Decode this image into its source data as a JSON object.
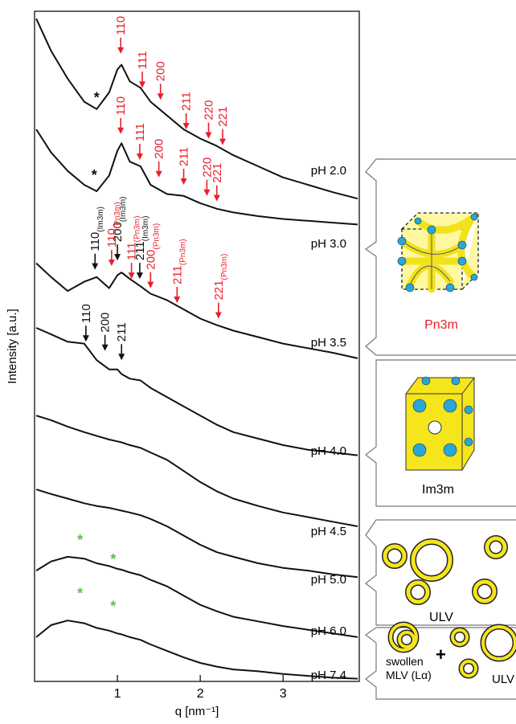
{
  "chart_data": {
    "type": "line",
    "y_label": "Intensity [a.u.]",
    "x_label": "q [nm⁻¹]",
    "xlim": [
      0,
      3.9
    ],
    "xticks": [
      1,
      2,
      3
    ],
    "ylim": [
      0,
      726
    ],
    "x": [
      0.02,
      0.2,
      0.4,
      0.6,
      0.75,
      0.9,
      1.0,
      1.05,
      1.15,
      1.28,
      1.4,
      1.6,
      1.8,
      2.0,
      2.2,
      2.4,
      2.7,
      3.0,
      3.3,
      3.6,
      3.9
    ],
    "series": [
      {
        "name": "pH 2.0",
        "color": "#111111",
        "values": [
          718,
          683,
          653,
          628,
          620,
          638,
          663,
          668,
          650,
          643,
          628,
          613,
          598,
          588,
          580,
          570,
          558,
          546,
          538,
          530,
          523
        ]
      },
      {
        "name": "pH 3.0",
        "color": "#111111",
        "values": [
          598,
          573,
          553,
          538,
          531,
          548,
          575,
          583,
          563,
          558,
          538,
          528,
          526,
          518,
          512,
          508,
          504,
          501,
          499,
          497,
          495
        ]
      },
      {
        "name": "pH 3.5",
        "color": "#111111",
        "values": [
          453,
          438,
          423,
          433,
          438,
          426,
          440,
          443,
          436,
          428,
          420,
          413,
          403,
          393,
          386,
          380,
          373,
          366,
          361,
          356,
          350
        ]
      },
      {
        "name": "pH 4.0",
        "color": "#111111",
        "values": [
          383,
          376,
          368,
          366,
          348,
          338,
          338,
          333,
          328,
          326,
          318,
          308,
          298,
          288,
          278,
          270,
          263,
          256,
          251,
          248,
          245
        ]
      },
      {
        "name": "pH 4.5",
        "color": "#111111",
        "values": [
          288,
          283,
          276,
          270,
          266,
          262,
          260,
          259,
          256,
          253,
          248,
          240,
          228,
          216,
          206,
          198,
          190,
          183,
          178,
          173,
          168
        ]
      },
      {
        "name": "pH 5.0",
        "color": "#111111",
        "values": [
          208,
          203,
          198,
          193,
          190,
          188,
          186,
          185,
          183,
          180,
          176,
          168,
          158,
          148,
          140,
          135,
          128,
          123,
          120,
          116,
          113
        ]
      },
      {
        "name": "pH 6.0",
        "color": "#111111",
        "values": [
          120,
          130,
          135,
          133,
          128,
          125,
          122,
          121,
          118,
          115,
          110,
          103,
          93,
          83,
          76,
          70,
          65,
          60,
          56,
          52,
          48
        ]
      },
      {
        "name": "pH 7.4",
        "color": "#111111",
        "values": [
          48,
          61,
          66,
          63,
          58,
          55,
          52,
          51,
          48,
          45,
          40,
          33,
          26,
          20,
          16,
          13,
          11,
          8,
          6,
          4,
          3
        ]
      }
    ],
    "peak_labels": [
      {
        "text": "110",
        "x": 1.04,
        "y": 680,
        "color": "#e8202a"
      },
      {
        "text": "111",
        "x": 1.3,
        "y": 643,
        "color": "#e8202a"
      },
      {
        "text": "200",
        "x": 1.52,
        "y": 630,
        "color": "#e8202a"
      },
      {
        "text": "211",
        "x": 1.83,
        "y": 598,
        "color": "#e8202a"
      },
      {
        "text": "220",
        "x": 2.1,
        "y": 588,
        "color": "#e8202a"
      },
      {
        "text": "221",
        "x": 2.27,
        "y": 581,
        "color": "#e8202a"
      },
      {
        "text": "110",
        "x": 1.04,
        "y": 593,
        "color": "#e8202a"
      },
      {
        "text": "111",
        "x": 1.27,
        "y": 565,
        "color": "#e8202a"
      },
      {
        "text": "200",
        "x": 1.5,
        "y": 546,
        "color": "#e8202a"
      },
      {
        "text": "211",
        "x": 1.8,
        "y": 538,
        "color": "#e8202a"
      },
      {
        "text": "220",
        "x": 2.08,
        "y": 526,
        "color": "#e8202a"
      },
      {
        "text": "221",
        "x": 2.2,
        "y": 520,
        "color": "#e8202a"
      },
      {
        "text": "110",
        "sub": "(Im3m)",
        "x": 0.73,
        "y": 446,
        "color": "#111111"
      },
      {
        "text": "200",
        "sub": "(Im3m)",
        "x": 1.0,
        "y": 456,
        "color": "#111111"
      },
      {
        "text": "211",
        "sub": "(Im3m)",
        "x": 1.27,
        "y": 436,
        "color": "#111111"
      },
      {
        "text": "110",
        "sub": "(Pn3m)",
        "x": 0.93,
        "y": 450,
        "color": "#e8202a"
      },
      {
        "text": "111",
        "sub": "(Pn3m)",
        "x": 1.17,
        "y": 436,
        "color": "#e8202a"
      },
      {
        "text": "200",
        "sub": "(Pn3m)",
        "x": 1.4,
        "y": 426,
        "color": "#e8202a"
      },
      {
        "text": "211",
        "sub": "(Pn3m)",
        "x": 1.72,
        "y": 410,
        "color": "#e8202a"
      },
      {
        "text": "221",
        "sub": "(Pn3m)",
        "x": 2.22,
        "y": 393,
        "color": "#e8202a"
      },
      {
        "text": "110",
        "x": 0.62,
        "y": 368,
        "color": "#111111"
      },
      {
        "text": "200",
        "x": 0.85,
        "y": 358,
        "color": "#111111"
      },
      {
        "text": "211",
        "x": 1.05,
        "y": 348,
        "color": "#111111"
      }
    ],
    "markers": [
      {
        "text": "*",
        "x": 0.75,
        "y": 635,
        "color": "#111111"
      },
      {
        "text": "*",
        "x": 0.72,
        "y": 551,
        "color": "#111111"
      },
      {
        "text": "*",
        "x": 0.55,
        "y": 156,
        "color": "#5cbf4a"
      },
      {
        "text": "*",
        "x": 0.95,
        "y": 135,
        "color": "#5cbf4a"
      },
      {
        "text": "*",
        "x": 0.55,
        "y": 98,
        "color": "#5cbf4a"
      },
      {
        "text": "*",
        "x": 0.95,
        "y": 84,
        "color": "#5cbf4a"
      }
    ]
  },
  "panels": [
    {
      "label": "Pn3m"
    },
    {
      "label": "Im3m"
    },
    {
      "label": "ULV"
    },
    {
      "label": "ULV",
      "label2": "swollen",
      "label3": "MLV (Lα)",
      "plus": "+"
    }
  ]
}
